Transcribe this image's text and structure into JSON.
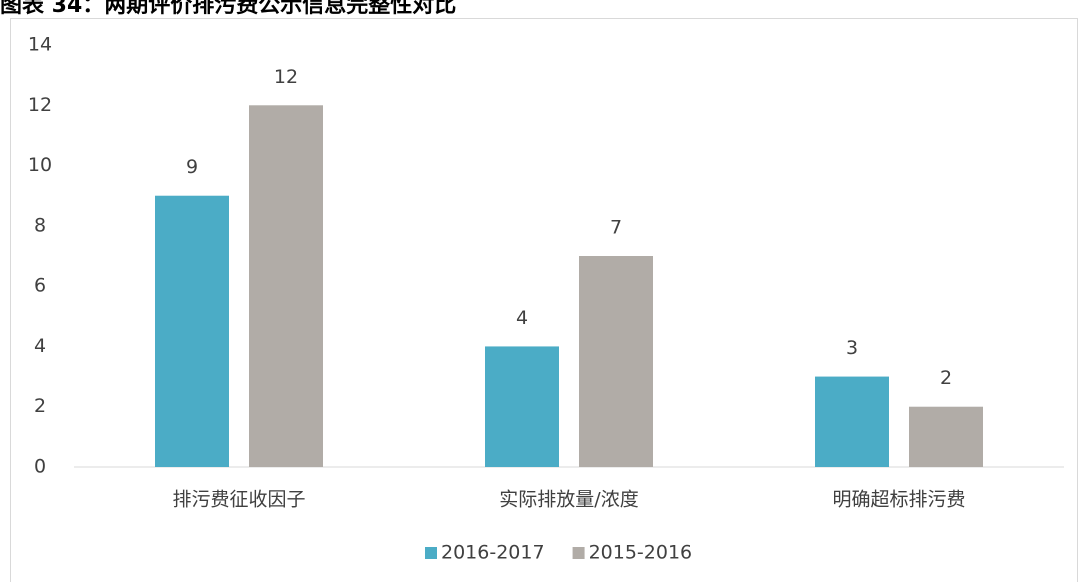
{
  "chart_data": {
    "type": "bar",
    "title": "图表 34：两期评价排污费公示信息完整性对比",
    "categories": [
      "排污费征收因子",
      "实际排放量/浓度",
      "明确超标排污费"
    ],
    "series": [
      {
        "name": "2016-2017",
        "color": "#4bacc6",
        "values": [
          9,
          4,
          3
        ]
      },
      {
        "name": "2015-2016",
        "color": "#b1aca7",
        "values": [
          12,
          7,
          2
        ]
      }
    ],
    "ylim": [
      0,
      14
    ],
    "yticks": [
      0,
      2,
      4,
      6,
      8,
      10,
      12,
      14
    ],
    "grid": false,
    "legend": "bottom"
  }
}
